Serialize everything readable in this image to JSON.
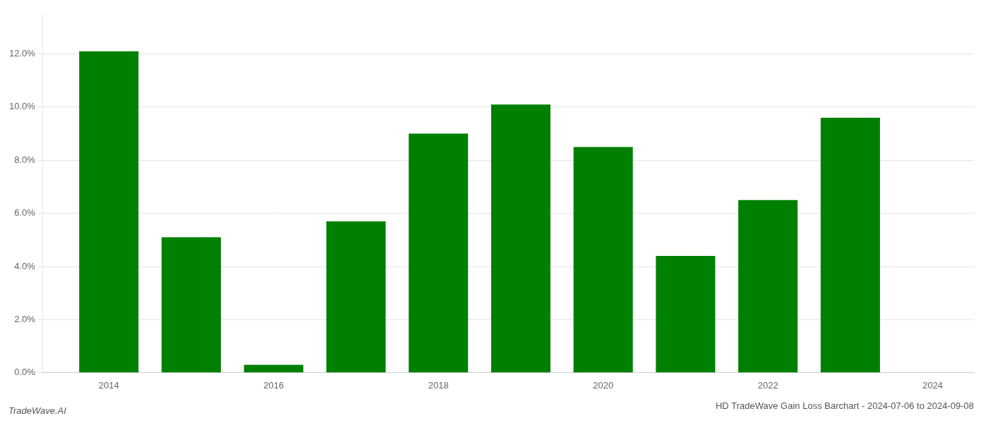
{
  "chart_data": {
    "type": "bar",
    "title": "HD TradeWave Gain Loss Barchart - 2024-07-06 to 2024-09-08",
    "annotations": [
      {
        "text": "TradeWave.AI"
      }
    ],
    "x": [
      2014,
      2015,
      2016,
      2017,
      2018,
      2019,
      2020,
      2021,
      2022,
      2023
    ],
    "values": [
      0.121,
      0.051,
      0.003,
      0.057,
      0.09,
      0.101,
      0.085,
      0.044,
      0.065,
      0.096
    ],
    "color": "#008000",
    "xlim": [
      2013.2,
      2024.5
    ],
    "xticks": [
      2014,
      2016,
      2018,
      2020,
      2022,
      2024
    ],
    "ylim": [
      0,
      0.135
    ],
    "yticks": [
      {
        "value": 0.0,
        "label": "0.0%"
      },
      {
        "value": 0.02,
        "label": "2.0%"
      },
      {
        "value": 0.04,
        "label": "4.0%"
      },
      {
        "value": 0.06,
        "label": "6.0%"
      },
      {
        "value": 0.08,
        "label": "8.0%"
      },
      {
        "value": 0.1,
        "label": "10.0%"
      },
      {
        "value": 0.12,
        "label": "12.0%"
      }
    ],
    "grid": true
  }
}
